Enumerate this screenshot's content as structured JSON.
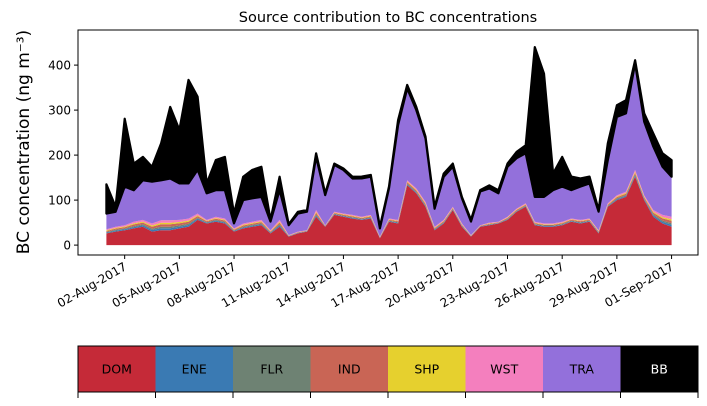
{
  "chart_data": {
    "type": "area",
    "stacked": true,
    "title": "Source contribution to BC concentrations",
    "xlabel": "",
    "ylabel": "BC concentration (ng m⁻³)",
    "x_unit": "days since 01-Aug-2017 00:00",
    "x_step_days": 0.5,
    "xlim_days": [
      -1.56,
      32.45
    ],
    "ylim": [
      -22,
      478
    ],
    "yticks": [
      0,
      100,
      200,
      300,
      400
    ],
    "xticks": [
      {
        "day": 1,
        "label": "02-Aug-2017"
      },
      {
        "day": 4,
        "label": "05-Aug-2017"
      },
      {
        "day": 7,
        "label": "08-Aug-2017"
      },
      {
        "day": 10,
        "label": "11-Aug-2017"
      },
      {
        "day": 13,
        "label": "14-Aug-2017"
      },
      {
        "day": 16,
        "label": "17-Aug-2017"
      },
      {
        "day": 19,
        "label": "20-Aug-2017"
      },
      {
        "day": 22,
        "label": "23-Aug-2017"
      },
      {
        "day": 25,
        "label": "26-Aug-2017"
      },
      {
        "day": 28,
        "label": "29-Aug-2017"
      },
      {
        "day": 31,
        "label": "01-Sep-2017"
      }
    ],
    "grid": false,
    "legend": "colorbar-bottom",
    "series": [
      {
        "name": "DOM",
        "color": "#c52a38",
        "text_color": "#000000",
        "values": [
          26,
          30,
          33,
          37,
          41,
          30,
          33,
          33,
          37,
          41,
          56,
          48,
          52,
          48,
          30,
          37,
          41,
          44,
          26,
          41,
          19,
          26,
          30,
          63,
          41,
          67,
          63,
          59,
          56,
          59,
          15,
          52,
          48,
          133,
          115,
          85,
          33,
          48,
          78,
          41,
          19,
          41,
          44,
          48,
          56,
          74,
          85,
          44,
          41,
          41,
          44,
          52,
          48,
          52,
          26,
          85,
          100,
          107,
          152,
          100,
          63,
          48,
          41
        ]
      },
      {
        "name": "ENE",
        "color": "#3a7ab3",
        "text_color": "#000000",
        "values": [
          1.8,
          2.2,
          2.2,
          3,
          3,
          3.6,
          4.4,
          4.4,
          3.8,
          3.6,
          2.8,
          1.6,
          2.2,
          2.2,
          1.4,
          2.2,
          2.2,
          2.4,
          1.4,
          3,
          0.6,
          0.8,
          0.6,
          3,
          0.6,
          1.4,
          1.4,
          1.6,
          1.4,
          1.6,
          0.8,
          1.4,
          1.6,
          2.2,
          2.2,
          2.2,
          1.6,
          1.6,
          1.4,
          1.4,
          0.6,
          0.6,
          1.2,
          0.8,
          1.4,
          1.4,
          1.6,
          1.6,
          1.4,
          1.4,
          1.6,
          1.4,
          1.6,
          1.4,
          1.4,
          1.6,
          2.2,
          2.4,
          3,
          2.2,
          3,
          3.8,
          4.4
        ]
      },
      {
        "name": "FLR",
        "color": "#6e8273",
        "text_color": "#000000",
        "values": [
          1.4,
          1.7,
          1.7,
          2.3,
          2.3,
          2.7,
          3.3,
          3.3,
          2.9,
          2.7,
          2.1,
          1.2,
          1.7,
          1.7,
          1.1,
          1.7,
          1.7,
          1.8,
          1.1,
          2.3,
          0.5,
          0.6,
          0.5,
          2.3,
          0.5,
          1.1,
          1.1,
          1.2,
          1.1,
          1.2,
          0.6,
          1.1,
          1.2,
          1.7,
          1.7,
          1.7,
          1.2,
          1.2,
          1.1,
          1.1,
          0.5,
          0.5,
          0.9,
          0.6,
          1.1,
          1.1,
          1.2,
          1.2,
          1.1,
          1.1,
          1.2,
          1.1,
          1.2,
          1.1,
          1.1,
          1.2,
          1.7,
          1.8,
          2.3,
          1.7,
          2.3,
          2.9,
          3.3
        ]
      },
      {
        "name": "IND",
        "color": "#c96555",
        "text_color": "#000000",
        "values": [
          2.2,
          2.7,
          2.7,
          3.7,
          3.7,
          4.5,
          5.5,
          5.5,
          4.7,
          4.5,
          3.5,
          2,
          2.7,
          2.7,
          1.8,
          2.7,
          2.7,
          3,
          1.8,
          3.7,
          0.8,
          1,
          0.8,
          3.7,
          0.8,
          1.8,
          1.8,
          2,
          1.8,
          2,
          1,
          1.8,
          2,
          2.7,
          2.7,
          2.7,
          2,
          2,
          1.8,
          1.8,
          0.8,
          0.8,
          1.5,
          1,
          1.8,
          1.8,
          2,
          2,
          1.8,
          1.8,
          2,
          1.8,
          2,
          1.8,
          1.8,
          2,
          2.7,
          3,
          3.7,
          2.7,
          3.7,
          4.7,
          5.5
        ]
      },
      {
        "name": "SHP",
        "color": "#e6d02e",
        "text_color": "#000000",
        "values": [
          1.4,
          1.7,
          1.7,
          2.3,
          2.3,
          2.7,
          3.3,
          3.3,
          2.9,
          2.7,
          2.1,
          1.2,
          1.7,
          1.7,
          1.1,
          1.7,
          1.7,
          1.8,
          1.1,
          2.3,
          0.5,
          0.6,
          0.5,
          2.3,
          0.5,
          1.1,
          1.1,
          1.2,
          1.1,
          1.2,
          0.6,
          1.1,
          1.2,
          1.7,
          1.7,
          1.7,
          1.2,
          1.2,
          1.1,
          1.1,
          0.5,
          0.5,
          0.9,
          0.6,
          1.1,
          1.1,
          1.2,
          1.2,
          1.1,
          1.1,
          1.2,
          1.1,
          1.2,
          1.1,
          1.1,
          1.2,
          1.7,
          1.8,
          2.3,
          1.7,
          2.3,
          2.9,
          3.3
        ]
      },
      {
        "name": "WST",
        "color": "#f47fbe",
        "text_color": "#000000",
        "values": [
          2.2,
          2.7,
          2.7,
          3.7,
          3.7,
          4.5,
          5.5,
          5.5,
          4.7,
          4.5,
          3.5,
          2,
          2.7,
          2.7,
          1.8,
          2.7,
          2.7,
          3,
          1.8,
          3.7,
          0.8,
          1,
          0.8,
          3.7,
          0.8,
          1.8,
          1.8,
          2,
          1.8,
          2,
          1,
          1.8,
          2,
          2.7,
          2.7,
          2.7,
          2,
          2,
          1.8,
          1.8,
          0.8,
          0.8,
          1.5,
          1,
          1.8,
          1.8,
          2,
          2,
          1.8,
          1.8,
          2,
          1.8,
          2,
          1.8,
          1.8,
          2,
          2.7,
          3,
          3.7,
          2.7,
          3.7,
          4.7,
          5.5
        ]
      },
      {
        "name": "TRA",
        "color": "#9370db",
        "text_color": "#000000",
        "values": [
          35,
          33,
          86,
          70,
          88,
          93,
          89,
          93,
          81,
          78,
          97,
          59,
          59,
          63,
          11,
          52,
          52,
          51,
          19,
          66,
          22,
          40,
          41,
          118,
          67,
          104,
          97,
          81,
          85,
          85,
          18,
          67,
          211,
          204,
          174,
          141,
          40,
          96,
          89,
          56,
          30,
          75,
          76,
          63,
          111,
          112,
          111,
          55,
          59,
          74,
          78,
          63,
          74,
          78,
          41,
          96,
          174,
          174,
          237,
          163,
          141,
          107,
          89
        ]
      },
      {
        "name": "BB",
        "color": "#000000",
        "text_color": "#ffffff",
        "values": [
          65,
          11,
          151,
          59,
          52,
          33,
          82,
          159,
          119,
          230,
          163,
          22,
          67,
          74,
          22,
          52,
          63,
          67,
          4,
          30,
          2,
          4,
          4,
          8,
          4,
          3,
          3,
          4,
          4,
          4,
          4,
          4,
          11,
          8,
          7,
          4,
          4,
          7,
          7,
          3,
          4,
          3,
          7,
          7,
          7,
          14,
          18,
          333,
          274,
          37,
          66,
          30,
          18,
          15,
          4,
          37,
          26,
          29,
          7,
          19,
          29,
          30,
          37
        ]
      }
    ]
  }
}
